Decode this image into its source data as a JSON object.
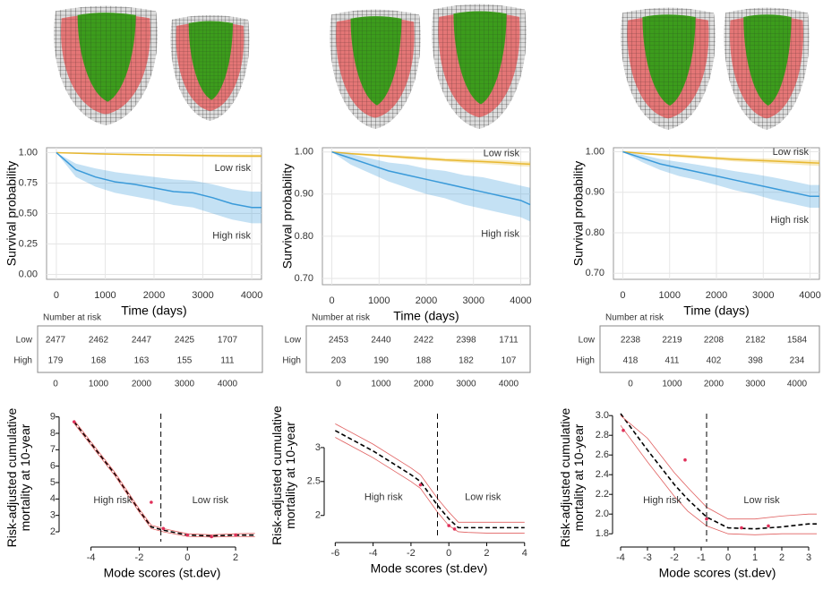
{
  "chart_data": [
    {
      "type": "line",
      "ylabel": "Survival probability",
      "xlabel": "Time (days)",
      "grid": true,
      "x": [
        0,
        400,
        800,
        1200,
        1600,
        2000,
        2400,
        2800,
        3200,
        3600,
        4000,
        4200
      ],
      "xlim": [
        -200,
        4200
      ],
      "xticks": [
        0,
        1000,
        2000,
        3000,
        4000
      ],
      "ylim": [
        -0.04,
        1.04
      ],
      "yticks": [
        {
          "value": 0,
          "label": "0.00"
        },
        {
          "value": 0.25,
          "label": "0.25"
        },
        {
          "value": 0.5,
          "label": "0.50"
        },
        {
          "value": 0.75,
          "label": "0.75"
        },
        {
          "value": 1,
          "label": "1.00"
        }
      ],
      "series": [
        {
          "name": "Low risk",
          "color": "#e8b830",
          "values": [
            1,
            0.995,
            0.99,
            0.987,
            0.984,
            0.981,
            0.979,
            0.977,
            0.975,
            0.973,
            0.972,
            0.972
          ],
          "lower": [
            1,
            0.99,
            0.984,
            0.98,
            0.976,
            0.972,
            0.969,
            0.966,
            0.963,
            0.96,
            0.958,
            0.958
          ],
          "upper": [
            1,
            0.999,
            0.995,
            0.993,
            0.991,
            0.989,
            0.988,
            0.987,
            0.986,
            0.985,
            0.984,
            0.984
          ]
        },
        {
          "name": "High risk",
          "color": "#3a9ad9",
          "values": [
            1,
            0.86,
            0.8,
            0.76,
            0.74,
            0.71,
            0.68,
            0.67,
            0.63,
            0.58,
            0.55,
            0.55
          ],
          "lower": [
            1,
            0.8,
            0.72,
            0.67,
            0.64,
            0.61,
            0.57,
            0.55,
            0.5,
            0.45,
            0.42,
            0.42
          ],
          "upper": [
            1,
            0.91,
            0.87,
            0.84,
            0.82,
            0.8,
            0.78,
            0.77,
            0.74,
            0.7,
            0.68,
            0.68
          ]
        }
      ]
    },
    {
      "type": "line",
      "ylabel": "Survival probability",
      "xlabel": "Time (days)",
      "grid": true,
      "x": [
        0,
        400,
        800,
        1200,
        1600,
        2000,
        2400,
        2800,
        3200,
        3600,
        4000,
        4200
      ],
      "xlim": [
        -200,
        4200
      ],
      "xticks": [
        0,
        1000,
        2000,
        3000,
        4000
      ],
      "ylim": [
        0.685,
        1.01
      ],
      "yticks": [
        {
          "value": 0.7,
          "label": "0.70"
        },
        {
          "value": 0.8,
          "label": "0.80"
        },
        {
          "value": 0.9,
          "label": "0.90"
        },
        {
          "value": 1,
          "label": "1.00"
        }
      ],
      "series": [
        {
          "name": "Low risk",
          "color": "#e8b830",
          "values": [
            1,
            0.996,
            0.993,
            0.99,
            0.987,
            0.984,
            0.981,
            0.979,
            0.977,
            0.975,
            0.972,
            0.971
          ],
          "lower": [
            1,
            0.994,
            0.99,
            0.987,
            0.983,
            0.98,
            0.977,
            0.974,
            0.972,
            0.969,
            0.966,
            0.965
          ],
          "upper": [
            1,
            0.998,
            0.996,
            0.993,
            0.991,
            0.988,
            0.985,
            0.984,
            0.982,
            0.981,
            0.978,
            0.977
          ]
        },
        {
          "name": "High risk",
          "color": "#3a9ad9",
          "values": [
            1,
            0.985,
            0.97,
            0.955,
            0.945,
            0.935,
            0.925,
            0.915,
            0.905,
            0.895,
            0.885,
            0.875
          ],
          "lower": [
            1,
            0.97,
            0.95,
            0.93,
            0.915,
            0.9,
            0.89,
            0.875,
            0.865,
            0.855,
            0.845,
            0.835
          ],
          "upper": [
            1,
            0.995,
            0.985,
            0.975,
            0.97,
            0.96,
            0.955,
            0.945,
            0.94,
            0.93,
            0.92,
            0.915
          ]
        }
      ]
    },
    {
      "type": "line",
      "ylabel": "Survival probability",
      "xlabel": "Time (days)",
      "grid": true,
      "x": [
        0,
        400,
        800,
        1200,
        1600,
        2000,
        2400,
        2800,
        3200,
        3600,
        4000,
        4200
      ],
      "xlim": [
        -200,
        4200
      ],
      "xticks": [
        0,
        1000,
        2000,
        3000,
        4000
      ],
      "ylim": [
        0.685,
        1.01
      ],
      "yticks": [
        {
          "value": 0.7,
          "label": "0.70"
        },
        {
          "value": 0.8,
          "label": "0.80"
        },
        {
          "value": 0.9,
          "label": "0.90"
        },
        {
          "value": 1,
          "label": "1.00"
        }
      ],
      "series": [
        {
          "name": "Low risk",
          "color": "#e8b830",
          "values": [
            1,
            0.996,
            0.993,
            0.99,
            0.987,
            0.984,
            0.981,
            0.979,
            0.977,
            0.975,
            0.973,
            0.972
          ],
          "lower": [
            1,
            0.994,
            0.99,
            0.986,
            0.983,
            0.98,
            0.976,
            0.974,
            0.971,
            0.969,
            0.966,
            0.965
          ],
          "upper": [
            1,
            0.998,
            0.996,
            0.994,
            0.991,
            0.988,
            0.986,
            0.984,
            0.983,
            0.981,
            0.98,
            0.979
          ]
        },
        {
          "name": "High risk",
          "color": "#3a9ad9",
          "values": [
            1,
            0.985,
            0.97,
            0.96,
            0.95,
            0.94,
            0.93,
            0.92,
            0.91,
            0.9,
            0.89,
            0.89
          ],
          "lower": [
            1,
            0.975,
            0.955,
            0.94,
            0.93,
            0.918,
            0.905,
            0.895,
            0.882,
            0.872,
            0.862,
            0.862
          ],
          "upper": [
            1,
            0.993,
            0.982,
            0.975,
            0.968,
            0.96,
            0.952,
            0.945,
            0.937,
            0.928,
            0.918,
            0.918
          ]
        }
      ]
    },
    {
      "type": "line",
      "ylabel": [
        "Risk-adjusted cumulative",
        "mortality at 10-year"
      ],
      "xlabel": "Mode scores (st.dev)",
      "grid": false,
      "x": [
        -4.7,
        -3,
        -2,
        -1.5,
        -1,
        0,
        1,
        2,
        2.8
      ],
      "xlim": [
        -5.1,
        3
      ],
      "xticks": [
        -4,
        -2,
        0,
        2
      ],
      "ylim": [
        1.4,
        9.2
      ],
      "yticks": [
        2,
        3,
        4,
        5,
        6,
        7,
        8,
        9
      ],
      "vline": -1.1,
      "series": [
        {
          "color": "#000000",
          "dash": true,
          "values": [
            8.7,
            5.5,
            3.3,
            2.3,
            2.1,
            1.8,
            1.75,
            1.8,
            1.8
          ]
        },
        {
          "color": "#e06060",
          "values": [
            8.6,
            5.4,
            3.2,
            2.2,
            2.0,
            1.72,
            1.68,
            1.72,
            1.7
          ]
        },
        {
          "color": "#e06060",
          "values": [
            8.8,
            5.6,
            3.4,
            2.4,
            2.2,
            1.88,
            1.82,
            1.88,
            1.9
          ]
        }
      ],
      "points": {
        "color": "#e0305a",
        "x": [
          -4.7,
          -1.5,
          -1,
          0,
          1,
          2
        ],
        "y": [
          8.7,
          3.8,
          2.2,
          1.8,
          1.7,
          1.8
        ]
      },
      "annotations": [
        "High risk",
        "Low risk"
      ]
    },
    {
      "type": "line",
      "ylabel": [
        "Risk-adjusted cumulative",
        "mortality at 10-year"
      ],
      "xlabel": "Mode scores (st.dev)",
      "grid": false,
      "x": [
        -6,
        -4,
        -2,
        -1.5,
        -0.6,
        0,
        0.5,
        1,
        2,
        3,
        4
      ],
      "xlim": [
        -6.3,
        4.2
      ],
      "xticks": [
        -6,
        -4,
        -2,
        0,
        2,
        4
      ],
      "ylim": [
        1.68,
        3.5
      ],
      "yticks": [
        2,
        2.5,
        3
      ],
      "vline": -0.6,
      "series": [
        {
          "color": "#000000",
          "dash": true,
          "values": [
            3.25,
            2.95,
            2.6,
            2.5,
            2.15,
            1.95,
            1.82,
            1.82,
            1.82,
            1.82,
            1.82
          ]
        },
        {
          "color": "#e06060",
          "values": [
            3.15,
            2.85,
            2.5,
            2.4,
            2.05,
            1.85,
            1.76,
            1.75,
            1.74,
            1.74,
            1.74
          ]
        },
        {
          "color": "#e06060",
          "values": [
            3.35,
            3.05,
            2.7,
            2.6,
            2.25,
            2.05,
            1.9,
            1.9,
            1.9,
            1.9,
            1.9
          ]
        }
      ],
      "points": {
        "color": "#e0305a",
        "x": [
          -1.5,
          0,
          0.3
        ],
        "y": [
          2.45,
          1.85,
          1.8
        ]
      },
      "annotations": [
        "High risk",
        "Low risk"
      ]
    },
    {
      "type": "line",
      "ylabel": [
        "Risk-adjusted cumulative",
        "mortality at 10-year"
      ],
      "xlabel": "Mode scores (st.dev)",
      "grid": false,
      "x": [
        -4,
        -3,
        -2,
        -1.5,
        -0.8,
        0,
        1,
        2,
        3,
        3.3
      ],
      "xlim": [
        -4.1,
        3.3
      ],
      "xticks": [
        -4,
        -3,
        -2,
        -1,
        0,
        1,
        2,
        3
      ],
      "ylim": [
        1.72,
        3.02
      ],
      "yticks": [
        1.8,
        {
          "value": 2,
          "label": "2.0"
        },
        2.2,
        2.4,
        2.6,
        2.8,
        {
          "value": 3,
          "label": "3.0"
        }
      ],
      "vline": -0.8,
      "series": [
        {
          "color": "#000000",
          "dash": true,
          "values": [
            3.02,
            2.65,
            2.3,
            2.15,
            1.97,
            1.86,
            1.85,
            1.87,
            1.9,
            1.9
          ]
        },
        {
          "color": "#e06060",
          "values": [
            2.9,
            2.53,
            2.18,
            2.03,
            1.88,
            1.8,
            1.79,
            1.8,
            1.8,
            1.8
          ]
        },
        {
          "color": "#e06060",
          "values": [
            3.0,
            2.77,
            2.42,
            2.27,
            2.07,
            1.95,
            1.95,
            1.98,
            2.0,
            2.0
          ]
        }
      ],
      "points": {
        "color": "#e0305a",
        "x": [
          -3.9,
          -1.6,
          -0.8,
          0.5,
          1.5
        ],
        "y": [
          2.85,
          2.55,
          1.95,
          1.86,
          1.88
        ]
      },
      "annotations": [
        "High risk",
        "Low risk"
      ]
    }
  ],
  "risk_tables": [
    {
      "title": "Number at risk",
      "columns": [
        0,
        1000,
        2000,
        3000,
        4000
      ],
      "rows": [
        {
          "label": "Low",
          "values": [
            2477,
            2462,
            2447,
            2425,
            1707
          ]
        },
        {
          "label": "High",
          "values": [
            179,
            168,
            163,
            155,
            111
          ]
        }
      ]
    },
    {
      "title": "Number at risk",
      "columns": [
        0,
        1000,
        2000,
        3000,
        4000
      ],
      "rows": [
        {
          "label": "Low",
          "values": [
            2453,
            2440,
            2422,
            2398,
            1711
          ]
        },
        {
          "label": "High",
          "values": [
            203,
            190,
            188,
            182,
            107
          ]
        }
      ]
    },
    {
      "title": "Number at risk",
      "columns": [
        0,
        1000,
        2000,
        3000,
        4000
      ],
      "rows": [
        {
          "label": "Low",
          "values": [
            2238,
            2219,
            2208,
            2182,
            1584
          ]
        },
        {
          "label": "High",
          "values": [
            418,
            411,
            402,
            398,
            234
          ]
        }
      ]
    }
  ]
}
